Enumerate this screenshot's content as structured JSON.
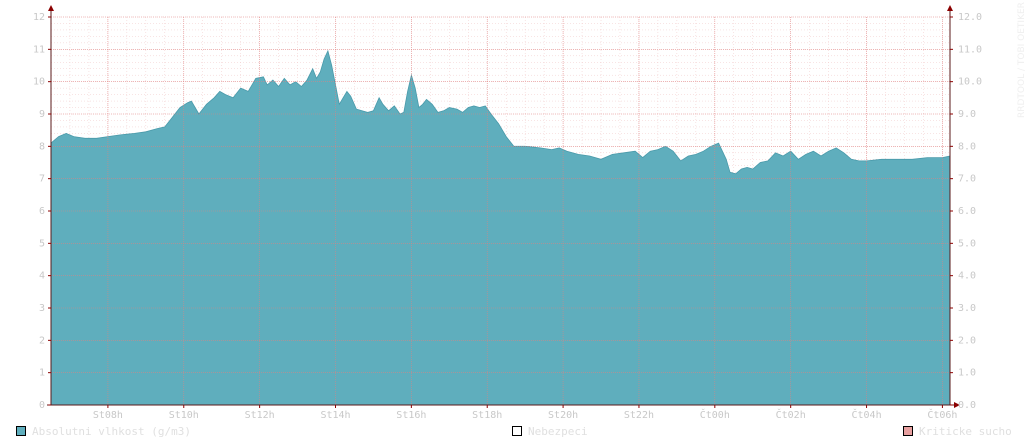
{
  "watermark": "RRDTOOL / TOBI OETIKER",
  "legend": [
    {
      "label": "Absolutni vlhkost (g/m3)",
      "color": "#5faebd"
    },
    {
      "label": "Nebezpeci",
      "color": "#ffffff"
    },
    {
      "label": "Kriticke sucho",
      "color": "#e8a0a0"
    }
  ],
  "chart_data": {
    "type": "area",
    "title": "",
    "xlabel": "",
    "ylabel": "",
    "x_ticks": [
      "St08h",
      "St10h",
      "St12h",
      "St14h",
      "St16h",
      "St18h",
      "St20h",
      "St22h",
      "Čt00h",
      "Čt02h",
      "Čt04h",
      "Čt06h"
    ],
    "xlim_hours": [
      6.5,
      30.2
    ],
    "ylim": [
      0,
      12
    ],
    "y_ticks_left": [
      "0",
      "1",
      "2",
      "3",
      "4",
      "5",
      "6",
      "7",
      "8",
      "9",
      "10",
      "11",
      "12"
    ],
    "y_ticks_right": [
      "0.0",
      "1.0",
      "2.0",
      "3.0",
      "4.0",
      "5.0",
      "6.0",
      "7.0",
      "8.0",
      "9.0",
      "10.0",
      "11.0",
      "12.0"
    ],
    "grid": true,
    "legend_placement": "bottom",
    "series": [
      {
        "name": "Absolutni vlhkost (g/m3)",
        "color": "#5faebd",
        "points": [
          [
            6.5,
            8.1
          ],
          [
            6.7,
            8.3
          ],
          [
            6.9,
            8.4
          ],
          [
            7.1,
            8.3
          ],
          [
            7.4,
            8.25
          ],
          [
            7.7,
            8.25
          ],
          [
            8.0,
            8.3
          ],
          [
            8.3,
            8.35
          ],
          [
            8.7,
            8.4
          ],
          [
            9.0,
            8.45
          ],
          [
            9.3,
            8.55
          ],
          [
            9.5,
            8.6
          ],
          [
            9.7,
            8.9
          ],
          [
            9.9,
            9.2
          ],
          [
            10.1,
            9.35
          ],
          [
            10.2,
            9.4
          ],
          [
            10.3,
            9.2
          ],
          [
            10.4,
            9.0
          ],
          [
            10.6,
            9.3
          ],
          [
            10.8,
            9.5
          ],
          [
            10.95,
            9.7
          ],
          [
            11.1,
            9.6
          ],
          [
            11.3,
            9.5
          ],
          [
            11.5,
            9.8
          ],
          [
            11.7,
            9.7
          ],
          [
            11.9,
            10.1
          ],
          [
            12.1,
            10.15
          ],
          [
            12.2,
            9.9
          ],
          [
            12.35,
            10.05
          ],
          [
            12.5,
            9.85
          ],
          [
            12.65,
            10.1
          ],
          [
            12.8,
            9.9
          ],
          [
            12.95,
            10.0
          ],
          [
            13.1,
            9.85
          ],
          [
            13.25,
            10.05
          ],
          [
            13.4,
            10.4
          ],
          [
            13.5,
            10.1
          ],
          [
            13.6,
            10.3
          ],
          [
            13.7,
            10.7
          ],
          [
            13.8,
            10.95
          ],
          [
            13.9,
            10.5
          ],
          [
            14.0,
            9.9
          ],
          [
            14.1,
            9.3
          ],
          [
            14.2,
            9.5
          ],
          [
            14.3,
            9.7
          ],
          [
            14.4,
            9.55
          ],
          [
            14.55,
            9.15
          ],
          [
            14.7,
            9.1
          ],
          [
            14.85,
            9.05
          ],
          [
            15.0,
            9.1
          ],
          [
            15.15,
            9.5
          ],
          [
            15.25,
            9.3
          ],
          [
            15.4,
            9.1
          ],
          [
            15.55,
            9.25
          ],
          [
            15.7,
            9.0
          ],
          [
            15.8,
            9.05
          ],
          [
            15.9,
            9.7
          ],
          [
            16.0,
            10.2
          ],
          [
            16.1,
            9.8
          ],
          [
            16.2,
            9.2
          ],
          [
            16.3,
            9.3
          ],
          [
            16.4,
            9.45
          ],
          [
            16.55,
            9.3
          ],
          [
            16.7,
            9.05
          ],
          [
            16.85,
            9.1
          ],
          [
            17.0,
            9.2
          ],
          [
            17.2,
            9.15
          ],
          [
            17.35,
            9.05
          ],
          [
            17.5,
            9.2
          ],
          [
            17.65,
            9.25
          ],
          [
            17.8,
            9.2
          ],
          [
            17.95,
            9.25
          ],
          [
            18.1,
            9.0
          ],
          [
            18.3,
            8.7
          ],
          [
            18.5,
            8.3
          ],
          [
            18.7,
            8.0
          ],
          [
            19.0,
            8.0
          ],
          [
            19.4,
            7.95
          ],
          [
            19.7,
            7.9
          ],
          [
            19.9,
            7.95
          ],
          [
            20.1,
            7.85
          ],
          [
            20.4,
            7.75
          ],
          [
            20.7,
            7.7
          ],
          [
            21.0,
            7.6
          ],
          [
            21.3,
            7.75
          ],
          [
            21.6,
            7.8
          ],
          [
            21.9,
            7.85
          ],
          [
            22.1,
            7.65
          ],
          [
            22.3,
            7.85
          ],
          [
            22.5,
            7.9
          ],
          [
            22.7,
            8.0
          ],
          [
            22.9,
            7.85
          ],
          [
            23.1,
            7.55
          ],
          [
            23.3,
            7.7
          ],
          [
            23.5,
            7.75
          ],
          [
            23.7,
            7.85
          ],
          [
            23.9,
            8.0
          ],
          [
            24.1,
            8.1
          ],
          [
            24.3,
            7.6
          ],
          [
            24.4,
            7.2
          ],
          [
            24.55,
            7.15
          ],
          [
            24.7,
            7.3
          ],
          [
            24.85,
            7.35
          ],
          [
            25.0,
            7.3
          ],
          [
            25.2,
            7.5
          ],
          [
            25.4,
            7.55
          ],
          [
            25.6,
            7.8
          ],
          [
            25.8,
            7.7
          ],
          [
            26.0,
            7.85
          ],
          [
            26.2,
            7.6
          ],
          [
            26.4,
            7.75
          ],
          [
            26.6,
            7.85
          ],
          [
            26.8,
            7.7
          ],
          [
            27.0,
            7.85
          ],
          [
            27.2,
            7.95
          ],
          [
            27.4,
            7.8
          ],
          [
            27.6,
            7.6
          ],
          [
            27.8,
            7.55
          ],
          [
            28.0,
            7.55
          ],
          [
            28.4,
            7.6
          ],
          [
            28.8,
            7.6
          ],
          [
            29.2,
            7.6
          ],
          [
            29.6,
            7.65
          ],
          [
            30.0,
            7.65
          ],
          [
            30.2,
            7.7
          ]
        ]
      }
    ]
  }
}
